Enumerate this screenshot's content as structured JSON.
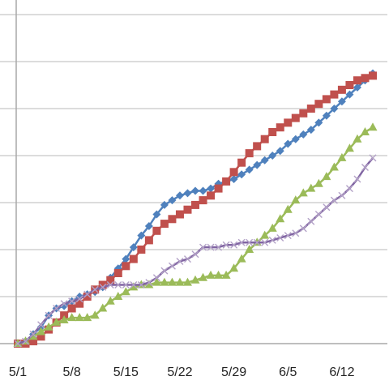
{
  "chart_data": {
    "type": "line",
    "x": [
      "5/1",
      "5/2",
      "5/3",
      "5/4",
      "5/5",
      "5/6",
      "5/7",
      "5/8",
      "5/9",
      "5/10",
      "5/11",
      "5/12",
      "5/13",
      "5/14",
      "5/15",
      "5/16",
      "5/17",
      "5/18",
      "5/19",
      "5/20",
      "5/21",
      "5/22",
      "5/23",
      "5/24",
      "5/25",
      "5/26",
      "5/27",
      "5/28",
      "5/29",
      "5/30",
      "5/31",
      "6/1",
      "6/2",
      "6/3",
      "6/4",
      "6/5",
      "6/6",
      "6/7",
      "6/8",
      "6/9",
      "6/10",
      "6/11",
      "6/12",
      "6/13",
      "6/14",
      "6/15",
      "6/16"
    ],
    "xticks": [
      "5/1",
      "5/8",
      "5/15",
      "5/22",
      "5/29",
      "6/5",
      "6/12"
    ],
    "ylim": [
      0,
      7
    ],
    "grid": true,
    "legend": false,
    "series": [
      {
        "color": "#4f81bd",
        "marker": "diamond",
        "values": [
          0.0,
          0.05,
          0.2,
          0.35,
          0.6,
          0.75,
          0.8,
          0.9,
          1.0,
          1.05,
          1.1,
          1.2,
          1.4,
          1.6,
          1.8,
          2.05,
          2.3,
          2.5,
          2.75,
          2.95,
          3.05,
          3.15,
          3.2,
          3.25,
          3.25,
          3.3,
          3.4,
          3.45,
          3.5,
          3.6,
          3.7,
          3.8,
          3.9,
          4.0,
          4.1,
          4.25,
          4.35,
          4.45,
          4.55,
          4.7,
          4.85,
          5.0,
          5.15,
          5.3,
          5.45,
          5.6,
          5.75
        ]
      },
      {
        "color": "#c0504d",
        "marker": "square",
        "values": [
          0.0,
          0.0,
          0.05,
          0.15,
          0.3,
          0.45,
          0.6,
          0.75,
          0.85,
          1.0,
          1.15,
          1.25,
          1.35,
          1.5,
          1.65,
          1.8,
          2.0,
          2.2,
          2.4,
          2.55,
          2.65,
          2.75,
          2.85,
          2.95,
          3.05,
          3.15,
          3.3,
          3.45,
          3.65,
          3.85,
          4.05,
          4.2,
          4.35,
          4.5,
          4.6,
          4.7,
          4.8,
          4.9,
          5.0,
          5.1,
          5.2,
          5.3,
          5.4,
          5.5,
          5.6,
          5.65,
          5.7
        ]
      },
      {
        "color": "#9bbb59",
        "marker": "triangle",
        "values": [
          0.0,
          0.05,
          0.15,
          0.25,
          0.35,
          0.45,
          0.5,
          0.55,
          0.55,
          0.55,
          0.6,
          0.75,
          0.9,
          1.0,
          1.1,
          1.2,
          1.25,
          1.25,
          1.3,
          1.3,
          1.3,
          1.3,
          1.3,
          1.35,
          1.4,
          1.45,
          1.45,
          1.45,
          1.6,
          1.8,
          2.0,
          2.15,
          2.3,
          2.45,
          2.65,
          2.85,
          3.05,
          3.2,
          3.3,
          3.4,
          3.55,
          3.75,
          3.95,
          4.15,
          4.35,
          4.5,
          4.6
        ]
      },
      {
        "color": "#8064a2",
        "marker": "x",
        "values": [
          0.0,
          0.05,
          0.2,
          0.4,
          0.6,
          0.75,
          0.85,
          0.9,
          0.95,
          1.05,
          1.15,
          1.2,
          1.25,
          1.25,
          1.25,
          1.25,
          1.25,
          1.3,
          1.4,
          1.55,
          1.65,
          1.75,
          1.8,
          1.9,
          2.05,
          2.05,
          2.05,
          2.1,
          2.1,
          2.15,
          2.15,
          2.15,
          2.15,
          2.2,
          2.25,
          2.3,
          2.35,
          2.45,
          2.6,
          2.75,
          2.9,
          3.05,
          3.15,
          3.3,
          3.5,
          3.75,
          3.95
        ]
      }
    ]
  }
}
